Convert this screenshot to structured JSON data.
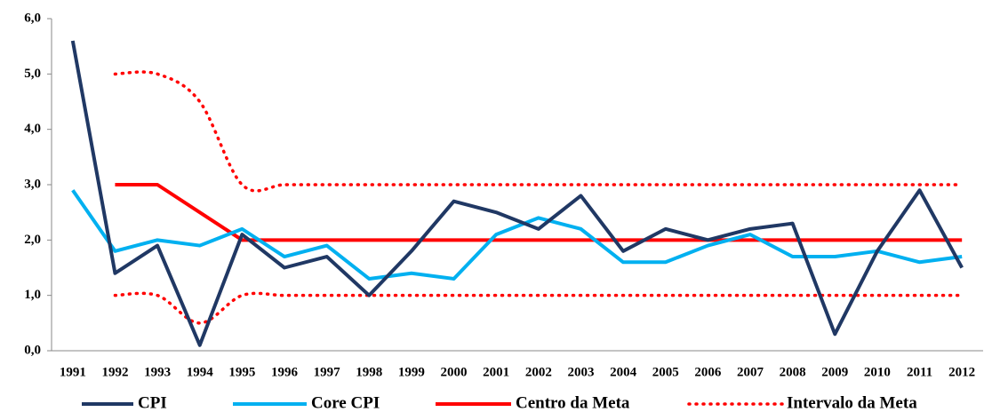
{
  "chart_data": {
    "type": "line",
    "categories": [
      "1991",
      "1992",
      "1993",
      "1994",
      "1995",
      "1996",
      "1997",
      "1998",
      "1999",
      "2000",
      "2001",
      "2002",
      "2003",
      "2004",
      "2005",
      "2006",
      "2007",
      "2008",
      "2009",
      "2010",
      "2011",
      "2012"
    ],
    "series": [
      {
        "name": "CPI",
        "color": "#203864",
        "dash": false,
        "smooth": false,
        "values": [
          5.6,
          1.4,
          1.9,
          0.1,
          2.1,
          1.5,
          1.7,
          1.0,
          1.8,
          2.7,
          2.5,
          2.2,
          2.8,
          1.8,
          2.2,
          2.0,
          2.2,
          2.3,
          0.3,
          1.8,
          2.9,
          1.5
        ]
      },
      {
        "name": "Core CPI",
        "color": "#00b0f0",
        "dash": false,
        "smooth": false,
        "values": [
          2.9,
          1.8,
          2.0,
          1.9,
          2.2,
          1.7,
          1.9,
          1.3,
          1.4,
          1.3,
          2.1,
          2.4,
          2.2,
          1.6,
          1.6,
          1.9,
          2.1,
          1.7,
          1.7,
          1.8,
          1.6,
          1.7
        ]
      },
      {
        "name": "Centro da Meta",
        "color": "#ff0000",
        "dash": false,
        "smooth": false,
        "values": [
          null,
          3,
          3,
          2.5,
          2,
          2,
          2,
          2,
          2,
          2,
          2,
          2,
          2,
          2,
          2,
          2,
          2,
          2,
          2,
          2,
          2,
          2
        ]
      },
      {
        "name": "Intervalo da Meta",
        "color": "#ff0000",
        "dash": true,
        "smooth": true,
        "values": [
          null,
          5,
          5,
          4.5,
          3,
          3,
          3,
          3,
          3,
          3,
          3,
          3,
          3,
          3,
          3,
          3,
          3,
          3,
          3,
          3,
          3,
          3
        ],
        "lower": [
          null,
          1,
          1,
          0.5,
          1,
          1,
          1,
          1,
          1,
          1,
          1,
          1,
          1,
          1,
          1,
          1,
          1,
          1,
          1,
          1,
          1,
          1
        ]
      }
    ],
    "ylim": [
      0,
      6
    ],
    "yticks": [
      {
        "value": 0,
        "label": "0,0"
      },
      {
        "value": 1,
        "label": "1,0"
      },
      {
        "value": 2,
        "label": "2,0"
      },
      {
        "value": 3,
        "label": "3,0"
      },
      {
        "value": 4,
        "label": "4,0"
      },
      {
        "value": 5,
        "label": "5,0"
      },
      {
        "value": 6,
        "label": "6,0"
      }
    ],
    "legend": "bottom"
  }
}
